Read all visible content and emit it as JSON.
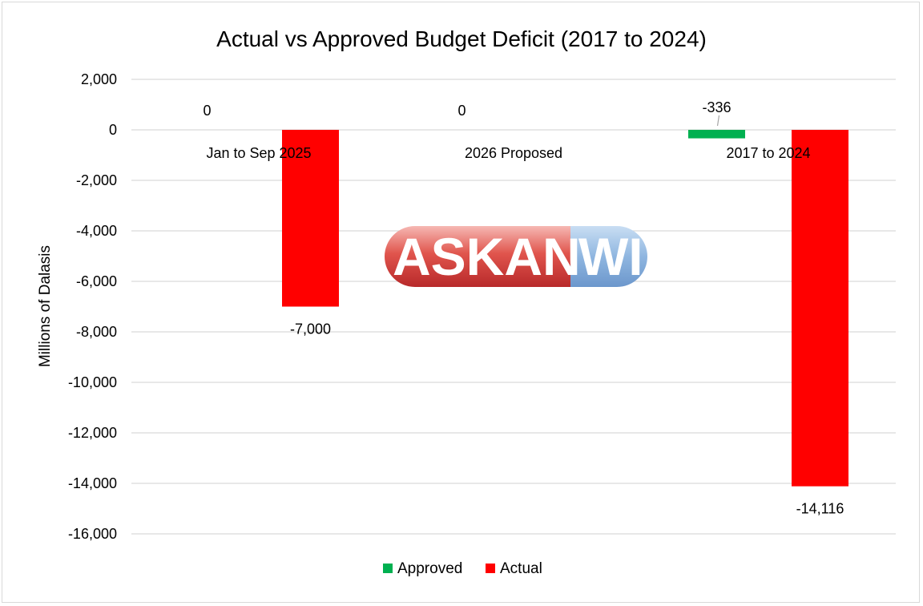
{
  "chart_data": {
    "type": "bar",
    "title": "Actual vs Approved Budget Deficit (2017 to 2024)",
    "ylabel": "Millions of Dalasis",
    "xlabel": "",
    "categories": [
      "Jan to Sep 2025",
      "2026 Proposed",
      "2017 to 2024"
    ],
    "series": [
      {
        "name": "Approved",
        "color": "#00b050",
        "values": [
          0,
          0,
          -336
        ],
        "labels": [
          "0",
          "0",
          "-336"
        ]
      },
      {
        "name": "Actual",
        "color": "#ff0000",
        "values": [
          -7000,
          null,
          -14116
        ],
        "labels": [
          "-7,000",
          "",
          "-14,116"
        ]
      }
    ],
    "ylim": [
      -16000,
      2000
    ],
    "yticks": [
      2000,
      0,
      -2000,
      -4000,
      -6000,
      -8000,
      -10000,
      -12000,
      -14000,
      -16000
    ],
    "ytick_labels": [
      "2,000",
      "0",
      "-2,000",
      "-4,000",
      "-6,000",
      "-8,000",
      "-10,000",
      "-12,000",
      "-14,000",
      "-16,000"
    ],
    "grid": true,
    "legend_position": "bottom"
  },
  "watermark": {
    "left": "ASKAN",
    "right": "WI"
  }
}
